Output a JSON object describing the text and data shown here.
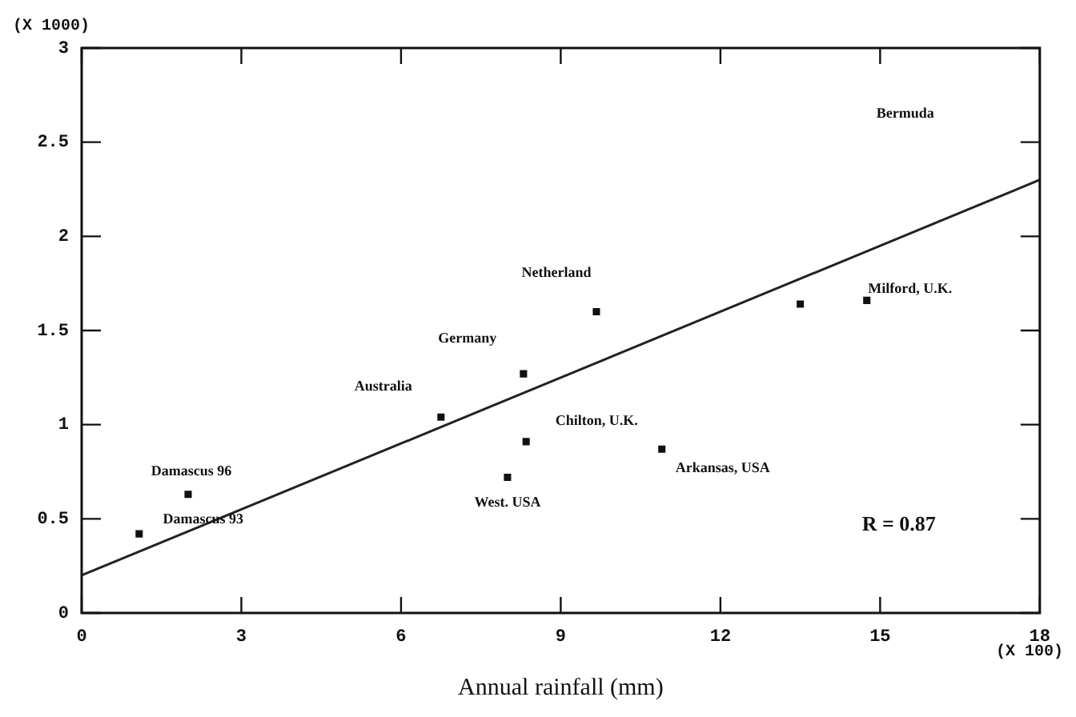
{
  "chart_data": {
    "type": "scatter",
    "xlabel": "Annual rainfall (mm)",
    "ylabel": "(X 1000)",
    "xlim": [
      0,
      18
    ],
    "xticks": [
      0,
      3,
      6,
      9,
      12,
      15,
      18
    ],
    "ylim": [
      0,
      3
    ],
    "yticks": [
      0,
      {
        "value": 0.5,
        "label": "0.5"
      },
      1,
      {
        "value": 1.5,
        "label": "1.5"
      },
      2,
      {
        "value": 2.5,
        "label": "2.5"
      },
      3
    ],
    "grid": false,
    "legend": false,
    "marker": "square",
    "series": [
      {
        "color": "#111111",
        "x": [
          1.08,
          2.0,
          6.75,
          8.3,
          8.0,
          8.35,
          9.67,
          10.9,
          13.5,
          14.75
        ],
        "values": [
          0.42,
          0.63,
          1.04,
          1.27,
          0.72,
          0.91,
          1.6,
          0.87,
          1.64,
          1.66
        ]
      },
      {
        "type": "line",
        "color": "#222222",
        "marker": "none",
        "x": [
          0,
          18
        ],
        "values": [
          0.2,
          2.3
        ]
      }
    ],
    "annotations": [
      {
        "text": "Netherland",
        "x": 9.67,
        "y": 1.6
      },
      {
        "text": "Germany",
        "x": 8.3,
        "y": 1.27
      },
      {
        "text": "Australia",
        "x": 6.75,
        "y": 1.04
      },
      {
        "text": "Damascus 96",
        "x": 2.0,
        "y": 0.63
      },
      {
        "text": "Damascus 93",
        "x": 1.08,
        "y": 0.42
      },
      {
        "text": "West. USA",
        "x": 8.0,
        "y": 0.72
      },
      {
        "text": "Chilton, U.K.",
        "x": 8.35,
        "y": 0.91
      },
      {
        "text": "Arkansas, USA",
        "x": 10.9,
        "y": 0.87
      },
      {
        "text": "Milford, U.K.",
        "x": 14.75,
        "y": 1.66
      },
      "Bermuda",
      "R = 0.87",
      "(X 100)"
    ]
  }
}
